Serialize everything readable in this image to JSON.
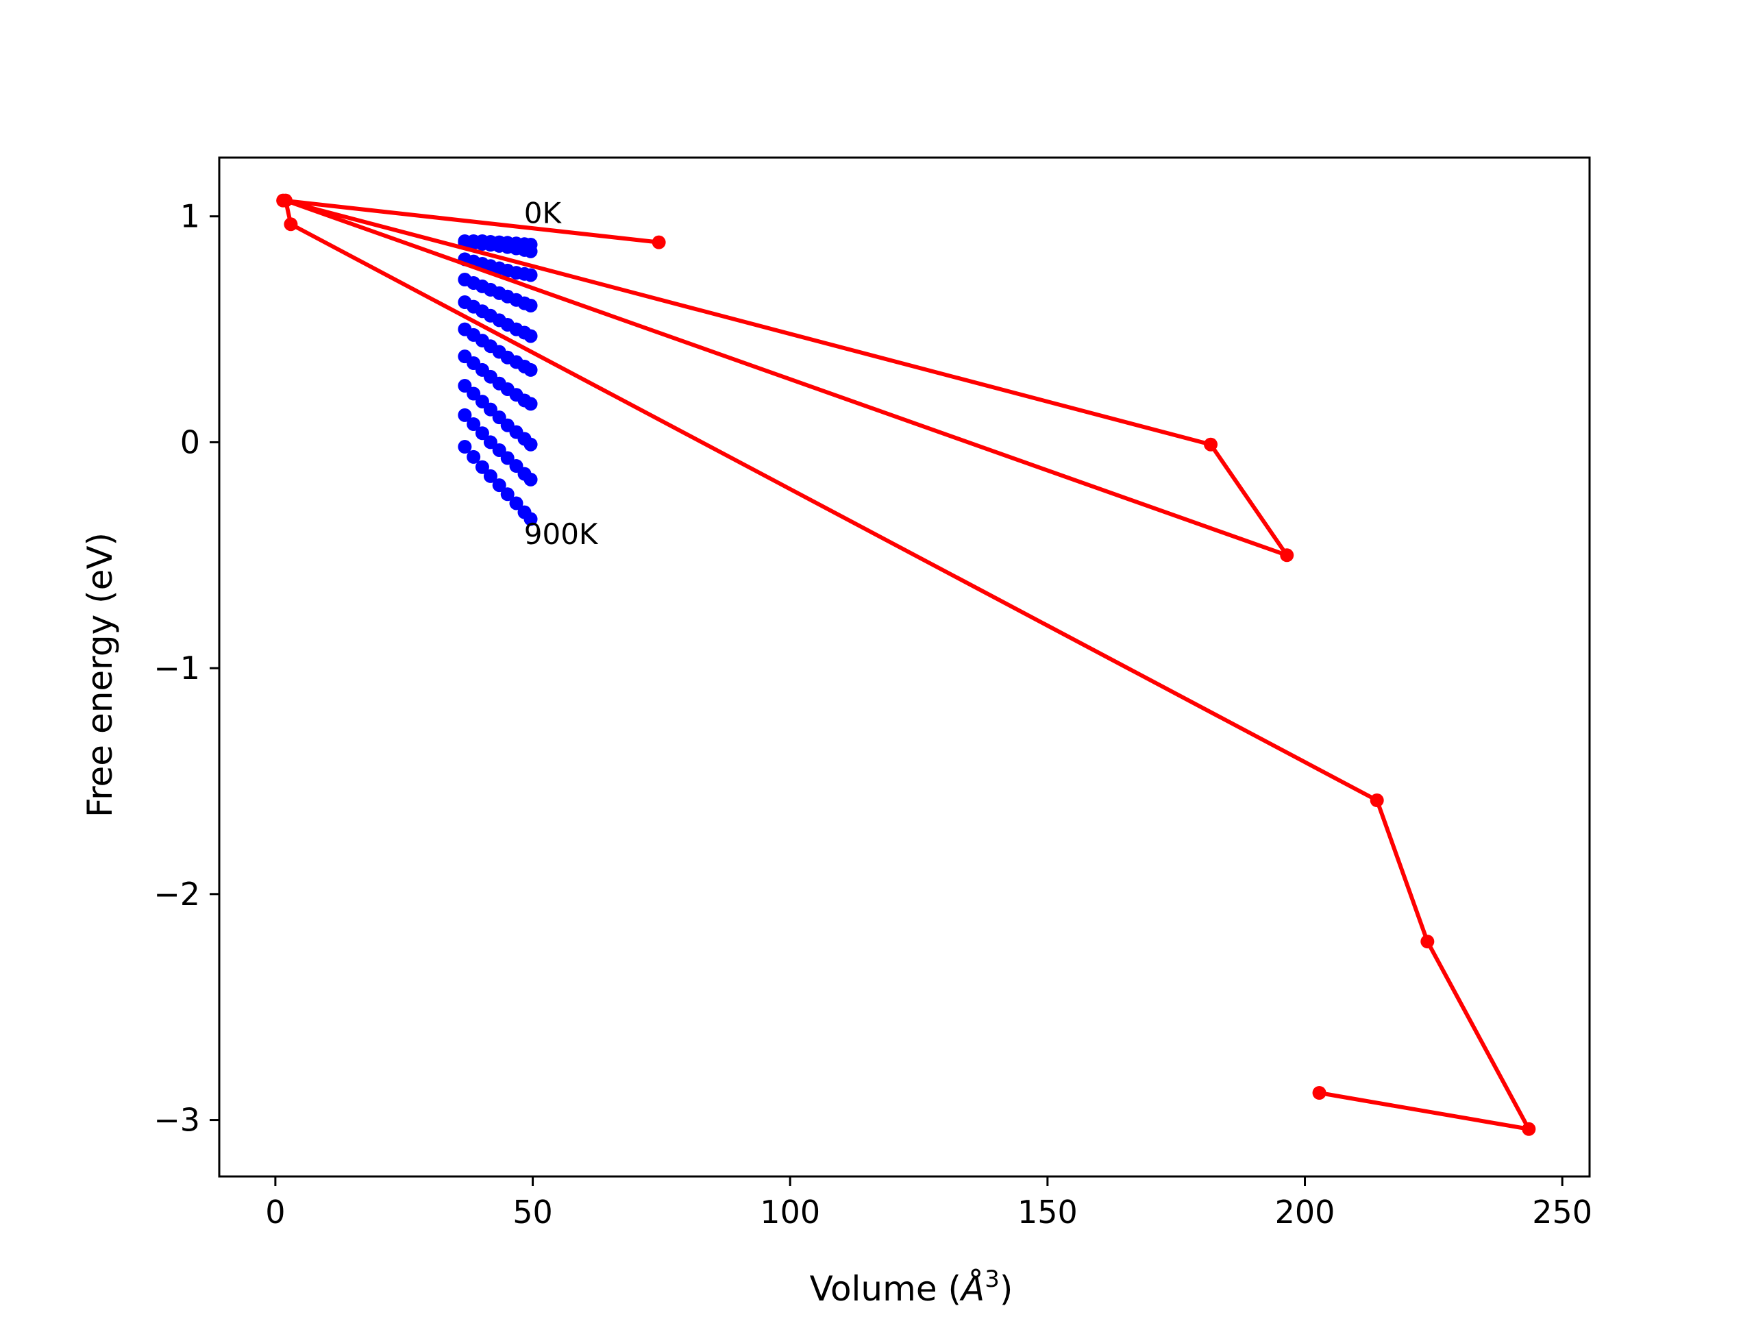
{
  "chart_data": {
    "type": "scatter",
    "title": "",
    "xlabel": "Volume (Å³)",
    "xlabel_parts": {
      "prefix": "Volume (",
      "symbol": "Å",
      "exponent": "3",
      "suffix": ")"
    },
    "ylabel": "Free energy (eV)",
    "xlim": [
      -10.9,
      255.3
    ],
    "ylim": [
      -3.25,
      1.26
    ],
    "xticks": [
      0,
      50,
      100,
      150,
      200,
      250
    ],
    "xtick_labels": [
      "0",
      "50",
      "100",
      "150",
      "200",
      "250"
    ],
    "yticks": [
      -3,
      -2,
      -1,
      0,
      1
    ],
    "ytick_labels": [
      "−3",
      "−2",
      "−1",
      "0",
      "1"
    ],
    "grid": false,
    "legend": "none",
    "annotations": [
      {
        "text": "0K",
        "x": 48.3,
        "y": 0.97
      },
      {
        "text": "900K",
        "x": 48.3,
        "y": -0.45
      }
    ],
    "series": [
      {
        "color": "#0000ff",
        "style": "points",
        "curves": [
          {
            "temperature_K": 0,
            "x": [
              36.8,
              38.5,
              40.2,
              41.8,
              43.5,
              45.1,
              46.8,
              48.4,
              49.6
            ],
            "y": [
              0.89,
              0.89,
              0.89,
              0.887,
              0.885,
              0.883,
              0.88,
              0.877,
              0.875
            ]
          },
          {
            "temperature_K": 100,
            "x": [
              36.8,
              38.5,
              40.2,
              41.8,
              43.5,
              45.1,
              46.8,
              48.4,
              49.6
            ],
            "y": [
              0.885,
              0.882,
              0.878,
              0.874,
              0.869,
              0.864,
              0.858,
              0.851,
              0.845
            ]
          },
          {
            "temperature_K": 200,
            "x": [
              36.8,
              38.5,
              40.2,
              41.8,
              43.5,
              45.1,
              46.8,
              48.4,
              49.6
            ],
            "y": [
              0.81,
              0.8,
              0.79,
              0.78,
              0.77,
              0.76,
              0.75,
              0.745,
              0.74
            ]
          },
          {
            "temperature_K": 300,
            "x": [
              36.8,
              38.5,
              40.2,
              41.8,
              43.5,
              45.1,
              46.8,
              48.4,
              49.6
            ],
            "y": [
              0.72,
              0.705,
              0.69,
              0.675,
              0.66,
              0.645,
              0.63,
              0.615,
              0.605
            ]
          },
          {
            "temperature_K": 400,
            "x": [
              36.8,
              38.5,
              40.2,
              41.8,
              43.5,
              45.1,
              46.8,
              48.4,
              49.6
            ],
            "y": [
              0.62,
              0.6,
              0.58,
              0.56,
              0.54,
              0.52,
              0.5,
              0.485,
              0.47
            ]
          },
          {
            "temperature_K": 500,
            "x": [
              36.8,
              38.5,
              40.2,
              41.8,
              43.5,
              45.1,
              46.8,
              48.4,
              49.6
            ],
            "y": [
              0.5,
              0.475,
              0.45,
              0.425,
              0.4,
              0.375,
              0.355,
              0.335,
              0.32
            ]
          },
          {
            "temperature_K": 600,
            "x": [
              36.8,
              38.5,
              40.2,
              41.8,
              43.5,
              45.1,
              46.8,
              48.4,
              49.6
            ],
            "y": [
              0.38,
              0.35,
              0.32,
              0.29,
              0.26,
              0.235,
              0.21,
              0.185,
              0.17
            ]
          },
          {
            "temperature_K": 700,
            "x": [
              36.8,
              38.5,
              40.2,
              41.8,
              43.5,
              45.1,
              46.8,
              48.4,
              49.6
            ],
            "y": [
              0.25,
              0.215,
              0.18,
              0.145,
              0.11,
              0.075,
              0.045,
              0.015,
              -0.01
            ]
          },
          {
            "temperature_K": 800,
            "x": [
              36.8,
              38.5,
              40.2,
              41.8,
              43.5,
              45.1,
              46.8,
              48.4,
              49.6
            ],
            "y": [
              0.12,
              0.08,
              0.04,
              0.0,
              -0.035,
              -0.07,
              -0.105,
              -0.14,
              -0.165
            ]
          },
          {
            "temperature_K": 900,
            "x": [
              36.8,
              38.5,
              40.2,
              41.8,
              43.5,
              45.1,
              46.8,
              48.4,
              49.6
            ],
            "y": [
              -0.02,
              -0.065,
              -0.11,
              -0.15,
              -0.19,
              -0.23,
              -0.27,
              -0.31,
              -0.34
            ]
          }
        ]
      },
      {
        "color": "#ff0000",
        "style": "line-markers",
        "x": [
          74.5,
          1.5,
          181.7,
          196.5,
          2.0,
          3.0,
          214.0,
          223.8,
          243.5,
          202.8
        ],
        "y": [
          0.885,
          1.07,
          -0.01,
          -0.5,
          1.07,
          0.965,
          -1.585,
          -2.21,
          -3.04,
          -2.88
        ]
      }
    ]
  }
}
